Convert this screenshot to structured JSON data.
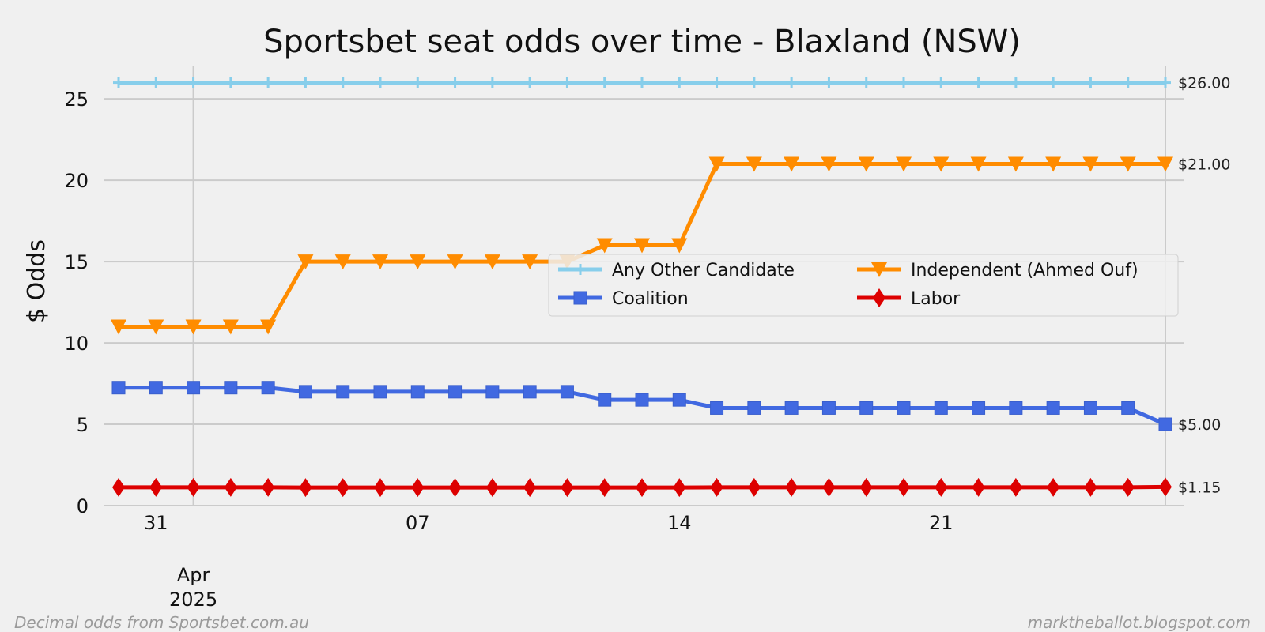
{
  "chart_data": {
    "type": "line",
    "title": "Sportsbet seat odds over time - Blaxland (NSW)",
    "ylabel": "$ Odds",
    "xlabel": "",
    "ylim": [
      0,
      27
    ],
    "y_ticks": [
      0,
      5,
      10,
      15,
      20,
      25
    ],
    "x_dates": [
      "2025-03-30",
      "2025-03-31",
      "2025-04-01",
      "2025-04-02",
      "2025-04-03",
      "2025-04-04",
      "2025-04-05",
      "2025-04-06",
      "2025-04-07",
      "2025-04-08",
      "2025-04-09",
      "2025-04-10",
      "2025-04-11",
      "2025-04-12",
      "2025-04-13",
      "2025-04-14",
      "2025-04-15",
      "2025-04-16",
      "2025-04-17",
      "2025-04-18",
      "2025-04-19",
      "2025-04-20",
      "2025-04-21",
      "2025-04-22",
      "2025-04-23",
      "2025-04-24",
      "2025-04-25",
      "2025-04-26",
      "2025-04-27"
    ],
    "x_ticks": [
      {
        "date": "2025-03-31",
        "label": "31"
      },
      {
        "date": "2025-04-07",
        "label": "07"
      },
      {
        "date": "2025-04-14",
        "label": "14"
      },
      {
        "date": "2025-04-21",
        "label": "21"
      }
    ],
    "x_major_tick": {
      "date": "2025-04-01",
      "label_line1": "Apr",
      "label_line2": "2025"
    },
    "grid": true,
    "legend_position": "center-right",
    "series": [
      {
        "name": "Any Other Candidate",
        "color": "#87ceeb",
        "marker": "plus",
        "values": [
          26,
          26,
          26,
          26,
          26,
          26,
          26,
          26,
          26,
          26,
          26,
          26,
          26,
          26,
          26,
          26,
          26,
          26,
          26,
          26,
          26,
          26,
          26,
          26,
          26,
          26,
          26,
          26,
          26
        ],
        "end_label": "$26.00"
      },
      {
        "name": "Coalition",
        "color": "#4169e1",
        "marker": "square",
        "values": [
          7.25,
          7.25,
          7.25,
          7.25,
          7.25,
          7,
          7,
          7,
          7,
          7,
          7,
          7,
          7,
          6.5,
          6.5,
          6.5,
          6,
          6,
          6,
          6,
          6,
          6,
          6,
          6,
          6,
          6,
          6,
          6,
          5
        ],
        "end_label": "$5.00"
      },
      {
        "name": "Independent  (Ahmed Ouf)",
        "color": "#ff8c00",
        "marker": "triangle-down",
        "values": [
          11,
          11,
          11,
          11,
          11,
          15,
          15,
          15,
          15,
          15,
          15,
          15,
          15,
          16,
          16,
          16,
          21,
          21,
          21,
          21,
          21,
          21,
          21,
          21,
          21,
          21,
          21,
          21,
          21
        ],
        "end_label": "$21.00"
      },
      {
        "name": "Labor",
        "color": "#dd0000",
        "marker": "diamond",
        "values": [
          1.12,
          1.12,
          1.12,
          1.12,
          1.12,
          1.11,
          1.11,
          1.11,
          1.11,
          1.11,
          1.11,
          1.11,
          1.11,
          1.11,
          1.11,
          1.11,
          1.12,
          1.12,
          1.12,
          1.12,
          1.12,
          1.12,
          1.12,
          1.12,
          1.12,
          1.12,
          1.12,
          1.12,
          1.15
        ],
        "end_label": "$1.15"
      }
    ],
    "legend_order": [
      "Any Other Candidate",
      "Independent  (Ahmed Ouf)",
      "Coalition",
      "Labor"
    ]
  },
  "footer": {
    "left": "Decimal odds from Sportsbet.com.au",
    "right": "marktheballot.blogspot.com"
  }
}
